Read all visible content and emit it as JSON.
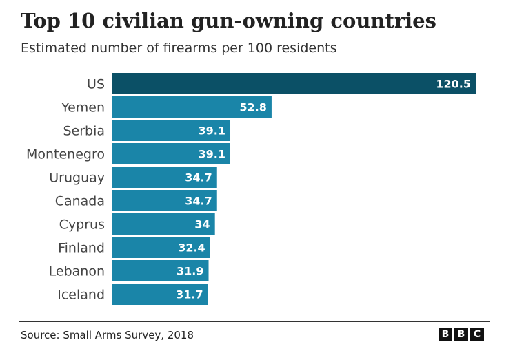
{
  "header": {
    "title": "Top 10 civilian gun-owning countries",
    "subtitle": "Estimated number of firearms per 100 residents"
  },
  "footer": {
    "source": "Source: Small Arms Survey, 2018",
    "logo_letters": [
      "B",
      "B",
      "C"
    ]
  },
  "colors": {
    "highlight": "#0b5066",
    "bar": "#1a85a8",
    "text": "#222222"
  },
  "chart_data": {
    "type": "bar",
    "orientation": "horizontal",
    "title": "Top 10 civilian gun-owning countries",
    "subtitle": "Estimated number of firearms per 100 residents",
    "categories": [
      "US",
      "Yemen",
      "Serbia",
      "Montenegro",
      "Uruguay",
      "Canada",
      "Cyprus",
      "Finland",
      "Lebanon",
      "Iceland"
    ],
    "values": [
      120.5,
      52.8,
      39.1,
      39.1,
      34.7,
      34.7,
      34,
      32.4,
      31.9,
      31.7
    ],
    "value_labels": [
      "120.5",
      "52.8",
      "39.1",
      "39.1",
      "34.7",
      "34.7",
      "34",
      "32.4",
      "31.9",
      "31.7"
    ],
    "highlighted": "US",
    "xlim": [
      0,
      120.5
    ],
    "grid": false,
    "legend": "none"
  }
}
